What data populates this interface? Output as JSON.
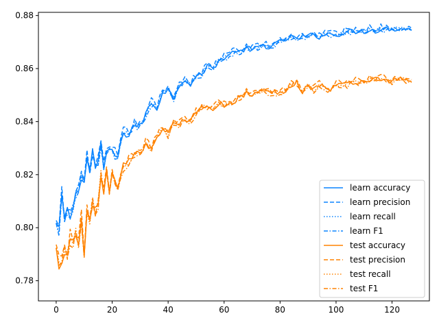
{
  "chart_data": {
    "type": "line",
    "title": "",
    "xlabel": "",
    "ylabel": "",
    "xlim": [
      -6.35,
      133.35
    ],
    "ylim": [
      0.7724,
      0.8812
    ],
    "xticks": [
      0,
      20,
      40,
      60,
      80,
      100,
      120
    ],
    "yticks": [
      0.78,
      0.8,
      0.82,
      0.84,
      0.86,
      0.88
    ],
    "grid": false,
    "legend_position": "lower-right",
    "colors": {
      "learn": "#0a84ff",
      "test": "#ff8200"
    },
    "x_range": [
      0,
      127
    ],
    "learn_anchors": {
      "x": [
        0,
        1,
        2,
        3,
        4,
        5,
        6,
        7,
        8,
        9,
        10,
        11,
        12,
        13,
        14,
        15,
        16,
        17,
        18,
        19,
        20,
        22,
        24,
        26,
        28,
        30,
        32,
        34,
        36,
        38,
        40,
        42,
        44,
        46,
        48,
        50,
        52,
        54,
        56,
        58,
        60,
        62,
        64,
        66,
        68,
        70,
        72,
        74,
        76,
        78,
        80,
        82,
        84,
        86,
        88,
        90,
        92,
        94,
        96,
        98,
        100,
        102,
        104,
        106,
        108,
        110,
        112,
        114,
        116,
        118,
        120,
        122,
        124,
        126,
        127
      ],
      "y": [
        0.801,
        0.798,
        0.812,
        0.803,
        0.806,
        0.804,
        0.808,
        0.812,
        0.815,
        0.82,
        0.817,
        0.826,
        0.821,
        0.829,
        0.823,
        0.825,
        0.831,
        0.822,
        0.827,
        0.83,
        0.829,
        0.826,
        0.836,
        0.835,
        0.839,
        0.838,
        0.843,
        0.847,
        0.845,
        0.851,
        0.852,
        0.849,
        0.854,
        0.856,
        0.854,
        0.857,
        0.858,
        0.861,
        0.86,
        0.863,
        0.864,
        0.865,
        0.867,
        0.866,
        0.868,
        0.867,
        0.868,
        0.869,
        0.868,
        0.869,
        0.87,
        0.871,
        0.872,
        0.871,
        0.872,
        0.872,
        0.873,
        0.872,
        0.873,
        0.873,
        0.873,
        0.873,
        0.874,
        0.874,
        0.874,
        0.874,
        0.875,
        0.874,
        0.875,
        0.875,
        0.875,
        0.875,
        0.875,
        0.875,
        0.875
      ]
    },
    "test_anchors": {
      "x": [
        0,
        1,
        2,
        3,
        4,
        5,
        6,
        7,
        8,
        9,
        10,
        11,
        12,
        13,
        14,
        15,
        16,
        17,
        18,
        19,
        20,
        22,
        24,
        26,
        28,
        30,
        32,
        34,
        36,
        38,
        40,
        42,
        44,
        46,
        48,
        50,
        52,
        54,
        56,
        58,
        60,
        62,
        64,
        66,
        68,
        70,
        72,
        74,
        76,
        78,
        80,
        82,
        84,
        86,
        88,
        90,
        92,
        94,
        96,
        98,
        100,
        102,
        104,
        106,
        108,
        110,
        112,
        114,
        116,
        118,
        120,
        122,
        124,
        126,
        127
      ],
      "y": [
        0.791,
        0.786,
        0.788,
        0.792,
        0.79,
        0.796,
        0.795,
        0.798,
        0.793,
        0.804,
        0.789,
        0.807,
        0.803,
        0.81,
        0.806,
        0.809,
        0.82,
        0.813,
        0.821,
        0.813,
        0.82,
        0.814,
        0.823,
        0.825,
        0.828,
        0.827,
        0.832,
        0.83,
        0.834,
        0.838,
        0.835,
        0.84,
        0.839,
        0.841,
        0.84,
        0.844,
        0.845,
        0.846,
        0.845,
        0.847,
        0.846,
        0.847,
        0.848,
        0.849,
        0.851,
        0.85,
        0.851,
        0.852,
        0.851,
        0.851,
        0.851,
        0.852,
        0.854,
        0.855,
        0.851,
        0.854,
        0.852,
        0.854,
        0.853,
        0.852,
        0.854,
        0.854,
        0.854,
        0.855,
        0.855,
        0.855,
        0.856,
        0.856,
        0.856,
        0.856,
        0.855,
        0.856,
        0.856,
        0.855,
        0.855
      ]
    },
    "series": [
      {
        "name": "learn accuracy",
        "group": "learn",
        "dash": "solid",
        "offset": 0.0,
        "noise": 0.001
      },
      {
        "name": "learn precision",
        "group": "learn",
        "dash": "dashed",
        "offset": 0.0007,
        "noise": 0.0013
      },
      {
        "name": "learn recall",
        "group": "learn",
        "dash": "dotted",
        "offset": 0.0,
        "noise": 0.0008
      },
      {
        "name": "learn F1",
        "group": "learn",
        "dash": "dashdot",
        "offset": -0.0005,
        "noise": 0.001
      },
      {
        "name": "test accuracy",
        "group": "test",
        "dash": "solid",
        "offset": 0.0,
        "noise": 0.001
      },
      {
        "name": "test precision",
        "group": "test",
        "dash": "dashed",
        "offset": 0.0006,
        "noise": 0.0013
      },
      {
        "name": "test recall",
        "group": "test",
        "dash": "dotted",
        "offset": 0.0,
        "noise": 0.0008
      },
      {
        "name": "test F1",
        "group": "test",
        "dash": "dashdot",
        "offset": -0.0006,
        "noise": 0.001
      }
    ]
  }
}
